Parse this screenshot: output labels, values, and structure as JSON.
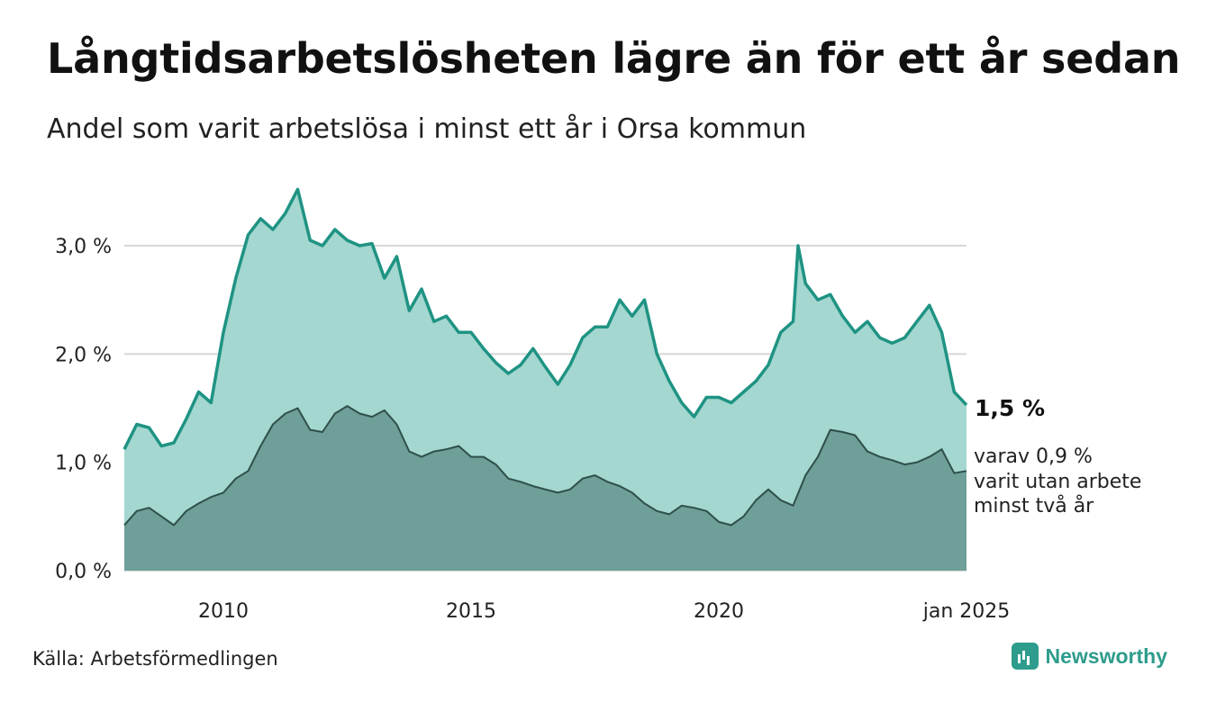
{
  "header": {
    "title": "Långtidsarbetslösheten lägre än för ett år sedan",
    "subtitle": "Andel som varit arbetslösa i minst ett år i Orsa kommun"
  },
  "footer": {
    "source": "Källa: Arbetsförmedlingen",
    "brand": "Newsworthy"
  },
  "colors": {
    "upper_area": "#a3d7cf",
    "upper_line": "#1f9383",
    "lower_area": "#6e9f98",
    "lower_line": "#2e4f4a",
    "grid": "#d8d8d8"
  },
  "chart_data": {
    "type": "area",
    "x_range": [
      2008.0,
      2025.0
    ],
    "ylim": [
      0,
      3.6
    ],
    "y_ticks": [
      0,
      1,
      2,
      3
    ],
    "y_tick_labels": [
      "0,0 %",
      "1,0 %",
      "2,0 %",
      "3,0 %"
    ],
    "x_ticks": [
      2010,
      2015,
      2020,
      2025
    ],
    "x_tick_labels": [
      "2010",
      "2015",
      "2020",
      "jan 2025"
    ],
    "grid": true,
    "end_label_main": "1,5 %",
    "end_label_sub": [
      "varav 0,9 %",
      "varit utan arbete",
      "minst två år"
    ],
    "series": [
      {
        "key": "minst_ett_ar",
        "points": [
          [
            2008.0,
            1.12
          ],
          [
            2008.25,
            1.35
          ],
          [
            2008.5,
            1.32
          ],
          [
            2008.75,
            1.15
          ],
          [
            2009.0,
            1.18
          ],
          [
            2009.25,
            1.4
          ],
          [
            2009.5,
            1.65
          ],
          [
            2009.75,
            1.55
          ],
          [
            2010.0,
            2.2
          ],
          [
            2010.25,
            2.7
          ],
          [
            2010.5,
            3.1
          ],
          [
            2010.75,
            3.25
          ],
          [
            2011.0,
            3.15
          ],
          [
            2011.25,
            3.3
          ],
          [
            2011.5,
            3.52
          ],
          [
            2011.75,
            3.05
          ],
          [
            2012.0,
            3.0
          ],
          [
            2012.25,
            3.15
          ],
          [
            2012.5,
            3.05
          ],
          [
            2012.75,
            3.0
          ],
          [
            2013.0,
            3.02
          ],
          [
            2013.25,
            2.7
          ],
          [
            2013.5,
            2.9
          ],
          [
            2013.75,
            2.4
          ],
          [
            2014.0,
            2.6
          ],
          [
            2014.25,
            2.3
          ],
          [
            2014.5,
            2.35
          ],
          [
            2014.75,
            2.2
          ],
          [
            2015.0,
            2.2
          ],
          [
            2015.25,
            2.05
          ],
          [
            2015.5,
            1.92
          ],
          [
            2015.75,
            1.82
          ],
          [
            2016.0,
            1.9
          ],
          [
            2016.25,
            2.05
          ],
          [
            2016.5,
            1.88
          ],
          [
            2016.75,
            1.72
          ],
          [
            2017.0,
            1.9
          ],
          [
            2017.25,
            2.15
          ],
          [
            2017.5,
            2.25
          ],
          [
            2017.75,
            2.25
          ],
          [
            2018.0,
            2.5
          ],
          [
            2018.25,
            2.35
          ],
          [
            2018.5,
            2.5
          ],
          [
            2018.75,
            2.0
          ],
          [
            2019.0,
            1.75
          ],
          [
            2019.25,
            1.55
          ],
          [
            2019.5,
            1.42
          ],
          [
            2019.75,
            1.6
          ],
          [
            2020.0,
            1.6
          ],
          [
            2020.25,
            1.55
          ],
          [
            2020.5,
            1.65
          ],
          [
            2020.75,
            1.75
          ],
          [
            2021.0,
            1.9
          ],
          [
            2021.25,
            2.2
          ],
          [
            2021.5,
            2.3
          ],
          [
            2021.6,
            3.0
          ],
          [
            2021.75,
            2.65
          ],
          [
            2022.0,
            2.5
          ],
          [
            2022.25,
            2.55
          ],
          [
            2022.5,
            2.35
          ],
          [
            2022.75,
            2.2
          ],
          [
            2023.0,
            2.3
          ],
          [
            2023.25,
            2.15
          ],
          [
            2023.5,
            2.1
          ],
          [
            2023.75,
            2.15
          ],
          [
            2024.0,
            2.3
          ],
          [
            2024.25,
            2.45
          ],
          [
            2024.5,
            2.2
          ],
          [
            2024.75,
            1.65
          ],
          [
            2025.0,
            1.53
          ]
        ]
      },
      {
        "key": "minst_tva_ar",
        "points": [
          [
            2008.0,
            0.42
          ],
          [
            2008.25,
            0.55
          ],
          [
            2008.5,
            0.58
          ],
          [
            2008.75,
            0.5
          ],
          [
            2009.0,
            0.42
          ],
          [
            2009.25,
            0.55
          ],
          [
            2009.5,
            0.62
          ],
          [
            2009.75,
            0.68
          ],
          [
            2010.0,
            0.72
          ],
          [
            2010.25,
            0.85
          ],
          [
            2010.5,
            0.92
          ],
          [
            2010.75,
            1.15
          ],
          [
            2011.0,
            1.35
          ],
          [
            2011.25,
            1.45
          ],
          [
            2011.5,
            1.5
          ],
          [
            2011.75,
            1.3
          ],
          [
            2012.0,
            1.28
          ],
          [
            2012.25,
            1.45
          ],
          [
            2012.5,
            1.52
          ],
          [
            2012.75,
            1.45
          ],
          [
            2013.0,
            1.42
          ],
          [
            2013.25,
            1.48
          ],
          [
            2013.5,
            1.35
          ],
          [
            2013.75,
            1.1
          ],
          [
            2014.0,
            1.05
          ],
          [
            2014.25,
            1.1
          ],
          [
            2014.5,
            1.12
          ],
          [
            2014.75,
            1.15
          ],
          [
            2015.0,
            1.05
          ],
          [
            2015.25,
            1.05
          ],
          [
            2015.5,
            0.98
          ],
          [
            2015.75,
            0.85
          ],
          [
            2016.0,
            0.82
          ],
          [
            2016.25,
            0.78
          ],
          [
            2016.5,
            0.75
          ],
          [
            2016.75,
            0.72
          ],
          [
            2017.0,
            0.75
          ],
          [
            2017.25,
            0.85
          ],
          [
            2017.5,
            0.88
          ],
          [
            2017.75,
            0.82
          ],
          [
            2018.0,
            0.78
          ],
          [
            2018.25,
            0.72
          ],
          [
            2018.5,
            0.62
          ],
          [
            2018.75,
            0.55
          ],
          [
            2019.0,
            0.52
          ],
          [
            2019.25,
            0.6
          ],
          [
            2019.5,
            0.58
          ],
          [
            2019.75,
            0.55
          ],
          [
            2020.0,
            0.45
          ],
          [
            2020.25,
            0.42
          ],
          [
            2020.5,
            0.5
          ],
          [
            2020.75,
            0.65
          ],
          [
            2021.0,
            0.75
          ],
          [
            2021.25,
            0.65
          ],
          [
            2021.5,
            0.6
          ],
          [
            2021.75,
            0.88
          ],
          [
            2022.0,
            1.05
          ],
          [
            2022.25,
            1.3
          ],
          [
            2022.5,
            1.28
          ],
          [
            2022.75,
            1.25
          ],
          [
            2023.0,
            1.1
          ],
          [
            2023.25,
            1.05
          ],
          [
            2023.5,
            1.02
          ],
          [
            2023.75,
            0.98
          ],
          [
            2024.0,
            1.0
          ],
          [
            2024.25,
            1.05
          ],
          [
            2024.5,
            1.12
          ],
          [
            2024.75,
            0.9
          ],
          [
            2025.0,
            0.92
          ]
        ]
      }
    ]
  }
}
